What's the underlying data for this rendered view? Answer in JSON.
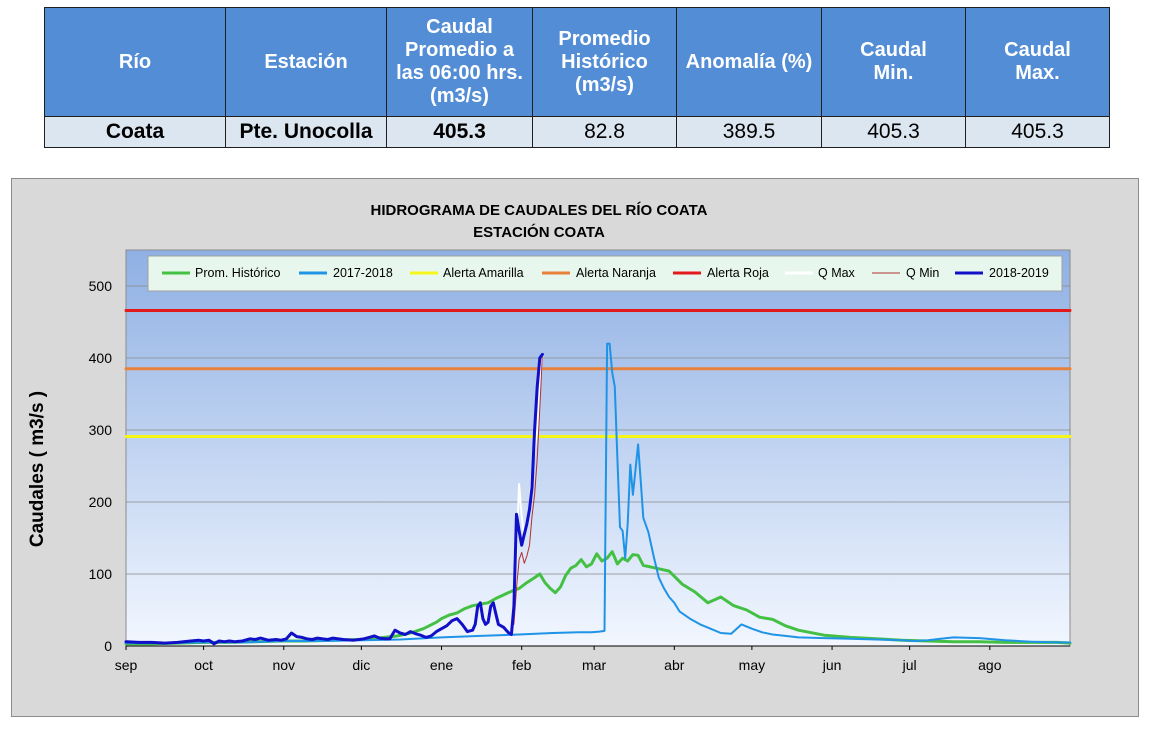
{
  "table": {
    "headers": [
      "Río",
      "Estación",
      "Caudal\nPromedio a\nlas 06:00 hrs.\n(m3/s)",
      "Promedio\nHistórico\n(m3/s)",
      "Anomalía (%)",
      "Caudal\nMin.",
      "Caudal\nMax."
    ],
    "row": [
      "Coata",
      "Pte. Unocolla",
      "405.3",
      "82.8",
      "389.5",
      "405.3",
      "405.3"
    ]
  },
  "chart_data": {
    "type": "line",
    "title": "HIDROGRAMA DE CAUDALES DEL RÍO COATA",
    "subtitle": "ESTACIÓN COATA",
    "ylabel": "Caudales ( m3/s )",
    "xlabel": "",
    "ylim": [
      0,
      550
    ],
    "yticks": [
      0,
      100,
      200,
      300,
      400,
      500
    ],
    "xlim": [
      0,
      365
    ],
    "months": [
      "sep",
      "oct",
      "nov",
      "dic",
      "ene",
      "feb",
      "mar",
      "abr",
      "may",
      "jun",
      "jul",
      "ago"
    ],
    "month_starts": [
      0,
      30,
      61,
      91,
      122,
      153,
      181,
      212,
      242,
      273,
      303,
      334
    ],
    "grid": true,
    "legend_position": "top",
    "colors": {
      "hist": "#44c044",
      "y2017": "#1f93e6",
      "amarilla": "#f5f51a",
      "naranja": "#e8823a",
      "roja": "#e31a1c",
      "qmax": "#ffffff",
      "qmin": "#b03030",
      "y2018": "#1010c8",
      "plot_top": "#8fb0e4",
      "plot_bottom": "#f2f7ff",
      "panel": "#d9d9d9",
      "legend_bg": "#e8f7ee"
    },
    "series": [
      {
        "name": "Prom. Histórico",
        "key": "hist",
        "x": [
          0,
          10,
          20,
          30,
          40,
          50,
          60,
          70,
          80,
          90,
          95,
          100,
          105,
          110,
          115,
          120,
          122,
          125,
          128,
          131,
          134,
          137,
          140,
          143,
          146,
          149,
          152,
          155,
          158,
          160,
          162,
          164,
          166,
          168,
          170,
          172,
          174,
          176,
          178,
          180,
          182,
          184,
          186,
          188,
          190,
          192,
          194,
          196,
          198,
          200,
          205,
          210,
          215,
          220,
          225,
          230,
          235,
          240,
          245,
          250,
          255,
          260,
          270,
          280,
          290,
          300,
          310,
          320,
          330,
          340,
          350,
          360,
          365
        ],
        "y": [
          3,
          3,
          4,
          5,
          5,
          6,
          7,
          7,
          8,
          9,
          10,
          12,
          14,
          18,
          24,
          33,
          38,
          43,
          46,
          52,
          56,
          58,
          60,
          66,
          71,
          76,
          80,
          88,
          95,
          100,
          88,
          80,
          74,
          82,
          98,
          108,
          112,
          120,
          110,
          114,
          128,
          118,
          122,
          131,
          114,
          122,
          118,
          127,
          126,
          112,
          108,
          104,
          86,
          75,
          60,
          68,
          56,
          50,
          40,
          37,
          28,
          22,
          15,
          12,
          10,
          8,
          7,
          6,
          6,
          5,
          5,
          5,
          4
        ]
      },
      {
        "name": "2017-2018",
        "key": "y2017",
        "x": [
          0,
          15,
          30,
          45,
          61,
          76,
          91,
          106,
          122,
          137,
          152,
          165,
          175,
          180,
          183,
          185,
          186,
          187,
          188,
          189,
          190,
          191,
          192,
          193,
          194,
          195,
          196,
          197,
          198,
          199,
          200,
          202,
          204,
          206,
          208,
          210,
          212,
          214,
          218,
          222,
          226,
          230,
          234,
          238,
          242,
          246,
          250,
          255,
          260,
          270,
          280,
          290,
          300,
          305,
          310,
          315,
          320,
          330,
          340,
          350,
          360,
          365
        ],
        "y": [
          4,
          4,
          5,
          5,
          7,
          7,
          8,
          9,
          12,
          14,
          16,
          18,
          19,
          19,
          20,
          21,
          420,
          420,
          380,
          360,
          260,
          165,
          160,
          122,
          170,
          252,
          210,
          245,
          280,
          230,
          178,
          158,
          125,
          95,
          80,
          68,
          60,
          48,
          38,
          30,
          24,
          18,
          17,
          30,
          24,
          19,
          16,
          14,
          12,
          11,
          10,
          9,
          8,
          7,
          8,
          10,
          12,
          11,
          8,
          6,
          5,
          5
        ]
      },
      {
        "name": "Alerta Amarilla",
        "key": "amarilla",
        "x": [
          0,
          365
        ],
        "y": [
          291,
          291
        ]
      },
      {
        "name": "Alerta Naranja",
        "key": "naranja",
        "x": [
          0,
          365
        ],
        "y": [
          385,
          385
        ]
      },
      {
        "name": "Alerta Roja",
        "key": "roja",
        "x": [
          0,
          365
        ],
        "y": [
          466,
          466
        ]
      },
      {
        "name": "Q Max",
        "key": "qmax",
        "x": [
          150,
          151,
          152,
          153,
          154,
          155,
          156,
          157,
          158,
          159,
          160,
          161
        ],
        "y": [
          30,
          130,
          225,
          180,
          150,
          170,
          195,
          240,
          270,
          300,
          360,
          405
        ]
      },
      {
        "name": "Q Min",
        "key": "qmin",
        "x": [
          150,
          151,
          152,
          153,
          154,
          155,
          156,
          157,
          158,
          159,
          160,
          161
        ],
        "y": [
          30,
          80,
          120,
          130,
          115,
          125,
          140,
          180,
          210,
          260,
          330,
          405
        ]
      },
      {
        "name": "2018-2019",
        "key": "y2018",
        "x": [
          0,
          5,
          10,
          15,
          20,
          25,
          28,
          30,
          32,
          33,
          34,
          36,
          38,
          40,
          42,
          45,
          48,
          50,
          52,
          55,
          58,
          60,
          62,
          64,
          66,
          68,
          70,
          72,
          74,
          76,
          78,
          80,
          84,
          88,
          92,
          94,
          96,
          98,
          100,
          102,
          104,
          106,
          108,
          110,
          112,
          114,
          116,
          118,
          120,
          122,
          124,
          126,
          128,
          130,
          132,
          134,
          135,
          136,
          137,
          138,
          139,
          140,
          141,
          142,
          143,
          144,
          145,
          146,
          147,
          148,
          149,
          150,
          151,
          152,
          153,
          154,
          155,
          156,
          157,
          158,
          159,
          160,
          161
        ],
        "y": [
          6,
          5,
          5,
          4,
          5,
          7,
          8,
          7,
          8,
          6,
          3,
          7,
          6,
          7,
          6,
          7,
          10,
          9,
          11,
          8,
          9,
          8,
          10,
          18,
          13,
          12,
          10,
          9,
          11,
          10,
          9,
          11,
          9,
          8,
          10,
          12,
          14,
          11,
          10,
          10,
          22,
          18,
          16,
          20,
          17,
          15,
          12,
          14,
          20,
          24,
          28,
          35,
          38,
          30,
          20,
          22,
          30,
          55,
          60,
          38,
          30,
          33,
          55,
          60,
          45,
          30,
          28,
          26,
          22,
          18,
          16,
          55,
          183,
          160,
          140,
          155,
          170,
          190,
          220,
          300,
          360,
          400,
          405
        ]
      }
    ]
  }
}
